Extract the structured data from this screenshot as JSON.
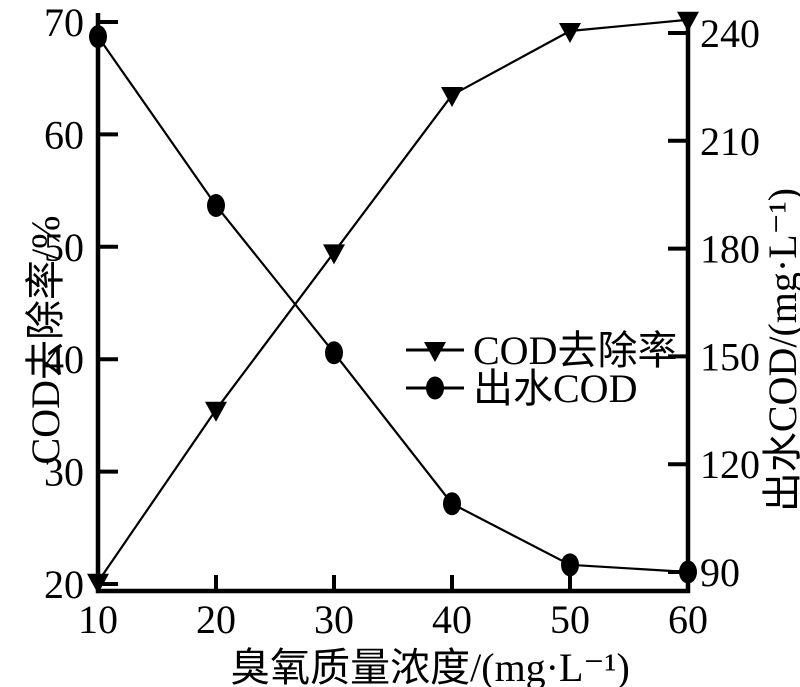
{
  "chart_data": {
    "type": "line",
    "x": [
      10,
      20,
      30,
      40,
      50,
      60
    ],
    "series": [
      {
        "name": "COD去除率",
        "axis": "left",
        "marker": "triangle-down",
        "values": [
          20.2,
          35.5,
          49.5,
          63.5,
          69.2,
          70.2
        ]
      },
      {
        "name": "出水COD",
        "axis": "right",
        "marker": "ellipse",
        "values": [
          239,
          192,
          151,
          109,
          92,
          90
        ]
      }
    ],
    "xlabel": "臭氧质量浓度/(mg·L⁻¹)",
    "ylabel_left": "COD去除率/%",
    "ylabel_right": "出水COD/(mg·L⁻¹)",
    "xlim": [
      10,
      60
    ],
    "ylim_left": [
      20,
      70
    ],
    "ylim_right": [
      90,
      240
    ],
    "xticks": [
      10,
      20,
      30,
      40,
      50,
      60
    ],
    "yticks_left": [
      20,
      30,
      40,
      50,
      60,
      70
    ],
    "yticks_right": [
      90,
      120,
      150,
      180,
      210,
      240
    ],
    "grid": false,
    "legend_position": "center-right",
    "line_color": "#000000",
    "background": "#ffffff"
  }
}
